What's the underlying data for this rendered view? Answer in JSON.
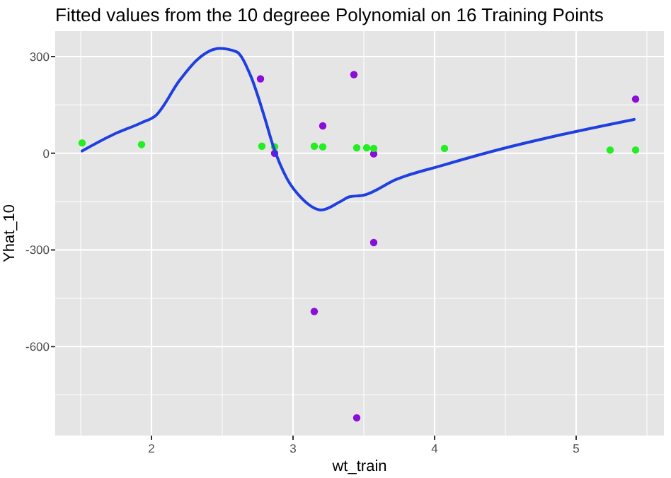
{
  "chart_data": {
    "type": "scatter",
    "title": "Fitted values from the 10 degreee Polynomial on 16 Training Points",
    "xlabel": "wt_train",
    "ylabel": "Yhat_10",
    "xlim": [
      1.32,
      5.62
    ],
    "ylim": [
      -876,
      379
    ],
    "xticks": [
      {
        "value": 1.5,
        "label": null
      },
      2,
      {
        "value": 2.5,
        "label": null
      },
      3,
      {
        "value": 3.5,
        "label": null
      },
      4,
      {
        "value": 4.5,
        "label": null
      },
      5,
      {
        "value": 5.5,
        "label": null
      }
    ],
    "yticks": [
      {
        "value": -750,
        "label": null
      },
      -600,
      {
        "value": -450,
        "label": null
      },
      -300,
      {
        "value": -150,
        "label": null
      },
      0,
      {
        "value": 150,
        "label": null
      },
      300
    ],
    "grid": true,
    "marker": "circle",
    "series": [
      {
        "color": "#8a0ed6",
        "x": [
          2.77,
          2.87,
          3.21,
          3.15,
          3.43,
          3.57,
          3.57,
          3.45,
          5.42
        ],
        "values": [
          231,
          0,
          85,
          -491,
          244,
          -2,
          -277,
          -821,
          168
        ]
      },
      {
        "color": "#22ee22",
        "x": [
          1.51,
          1.93,
          2.78,
          2.87,
          3.15,
          3.21,
          3.45,
          3.52,
          3.57,
          4.07,
          5.24,
          5.42
        ],
        "values": [
          32,
          27,
          22,
          20,
          22,
          20,
          17,
          17,
          15,
          15,
          10,
          10
        ]
      },
      {
        "type": "line",
        "color": "#1f3fe0",
        "marker": "none",
        "x": [
          1.51,
          1.73,
          1.93,
          2.03,
          2.2,
          2.33,
          2.48,
          2.6,
          2.7,
          2.8,
          2.86,
          2.96,
          3.06,
          3.2,
          3.33,
          3.4,
          3.5,
          3.73,
          4.06,
          4.46,
          4.9,
          5.41
        ],
        "values": [
          7,
          58,
          95,
          117,
          227,
          293,
          325,
          315,
          241,
          110,
          22,
          -81,
          -139,
          -176,
          -151,
          -135,
          -130,
          -81,
          -37,
          12,
          58,
          105
        ]
      }
    ]
  }
}
